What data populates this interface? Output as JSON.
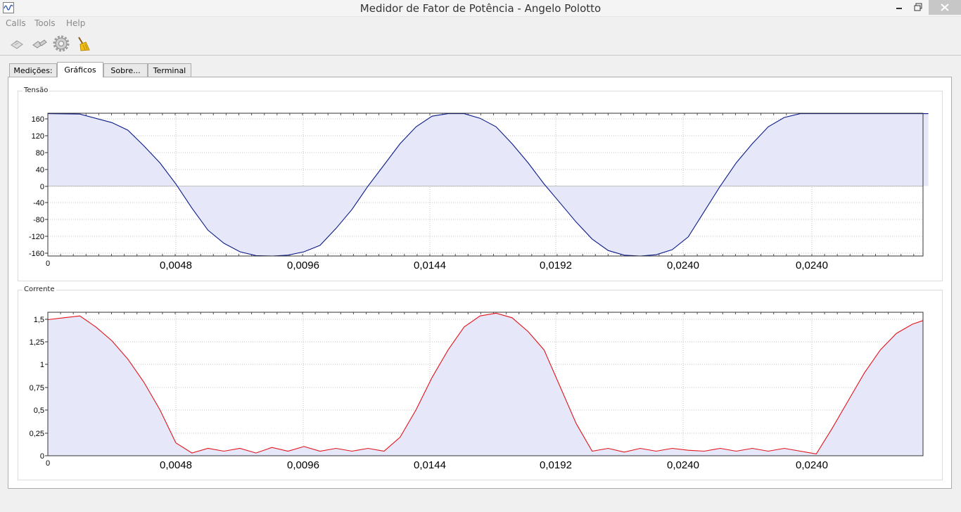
{
  "window": {
    "title": "Medidor de Fator de Potência - Angelo Polotto"
  },
  "menu": [
    "Calls",
    "Tools",
    "Help"
  ],
  "toolbar": {
    "icons": [
      "connect-icon",
      "disconnect-icon",
      "gear-icon",
      "broom-icon"
    ]
  },
  "tabs": [
    {
      "label": "Medições:",
      "active": false
    },
    {
      "label": "Gráficos",
      "active": true
    },
    {
      "label": "Sobre...",
      "active": false
    },
    {
      "label": "Terminal",
      "active": false
    }
  ],
  "colors": {
    "voltage_line": "#0a1a8a",
    "current_line": "#e3141c",
    "fill": "#e6e7f8",
    "grid": "#c4c4c4"
  },
  "chart_data": [
    {
      "type": "area",
      "group_title": "Tensão",
      "title": "",
      "ylim": [
        -165,
        172
      ],
      "y_ticks": [
        "160",
        "120",
        "80",
        "40",
        "0",
        "-40",
        "-80",
        "-120",
        "-160"
      ],
      "x_ticks": [
        "0",
        "0,0048",
        "0,0096",
        "0,0144",
        "0,0192",
        "0,0240",
        "0,0240"
      ],
      "grid": true,
      "legend": "none",
      "series": [
        {
          "x": [
            0,
            0.0012,
            0.0024,
            0.003,
            0.0036,
            0.0042,
            0.0048,
            0.0054,
            0.006,
            0.0066,
            0.0072,
            0.0078,
            0.0084,
            0.009,
            0.0096,
            0.0102,
            0.0108,
            0.0114,
            0.012,
            0.0126,
            0.0132,
            0.0138,
            0.0144,
            0.015,
            0.0156,
            0.0162,
            0.0168,
            0.0174,
            0.018,
            0.0186,
            0.0192,
            0.0198,
            0.0204,
            0.021,
            0.0216,
            0.0222,
            0.0228,
            0.0234,
            0.024,
            0.0246,
            0.0252,
            0.0258,
            0.0264,
            0.027,
            0.0276,
            0.0282,
            0.0288,
            0.0294,
            0.03,
            0.0306,
            0.0312,
            0.0318,
            0.0324,
            0.033
          ],
          "values": [
            171,
            170,
            150,
            132,
            95,
            55,
            5,
            -52,
            -104,
            -135,
            -155,
            -164,
            -165,
            -163,
            -155,
            -140,
            -100,
            -55,
            0,
            50,
            100,
            140,
            165,
            171,
            171,
            160,
            140,
            100,
            55,
            5,
            -40,
            -85,
            -125,
            -152,
            -163,
            -165,
            -162,
            -150,
            -120,
            -60,
            0,
            55,
            100,
            140,
            162,
            171,
            171,
            171,
            171,
            171,
            171,
            171,
            171,
            171
          ]
        }
      ]
    },
    {
      "type": "area",
      "group_title": "Corrente",
      "title": "",
      "ylim": [
        0,
        1.56
      ],
      "y_ticks": [
        "1,5",
        "1,25",
        "1",
        "0,75",
        "0,5",
        "0,25",
        "0"
      ],
      "x_ticks": [
        "0",
        "0,0048",
        "0,0096",
        "0,0144",
        "0,0192",
        "0,0240",
        "0,0240"
      ],
      "grid": true,
      "legend": "none",
      "series": [
        {
          "x": [
            0,
            0.0006,
            0.0012,
            0.0018,
            0.0024,
            0.003,
            0.0036,
            0.0042,
            0.0048,
            0.0054,
            0.006,
            0.0066,
            0.0072,
            0.0078,
            0.0084,
            0.009,
            0.0096,
            0.0102,
            0.0108,
            0.0114,
            0.012,
            0.0126,
            0.0132,
            0.0138,
            0.0144,
            0.015,
            0.0156,
            0.0162,
            0.0168,
            0.0174,
            0.018,
            0.0186,
            0.0192,
            0.0198,
            0.0204,
            0.021,
            0.0216,
            0.0222,
            0.0228,
            0.0234,
            0.024,
            0.0246,
            0.0252,
            0.0258,
            0.0264,
            0.027,
            0.0276,
            0.0282,
            0.0288,
            0.0294,
            0.03,
            0.0306,
            0.0312,
            0.0318,
            0.0324,
            0.0328
          ],
          "values": [
            1.48,
            1.5,
            1.52,
            1.4,
            1.25,
            1.05,
            0.8,
            0.5,
            0.14,
            0.03,
            0.08,
            0.05,
            0.08,
            0.03,
            0.09,
            0.05,
            0.1,
            0.05,
            0.08,
            0.05,
            0.08,
            0.05,
            0.2,
            0.5,
            0.85,
            1.15,
            1.4,
            1.52,
            1.55,
            1.5,
            1.35,
            1.15,
            0.75,
            0.35,
            0.05,
            0.08,
            0.04,
            0.08,
            0.05,
            0.08,
            0.06,
            0.05,
            0.08,
            0.05,
            0.08,
            0.05,
            0.08,
            0.05,
            0.02,
            0.3,
            0.6,
            0.9,
            1.15,
            1.33,
            1.43,
            1.47
          ]
        }
      ]
    }
  ]
}
